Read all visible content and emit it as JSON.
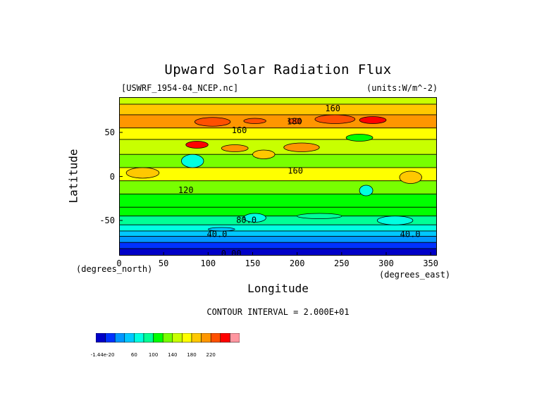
{
  "chart_data": {
    "type": "heatmap",
    "title": "Upward Solar Radiation Flux",
    "file_label": "[USWRF_1954-04_NCEP.nc]",
    "units_label": "(units:W/m^-2)",
    "xlabel": "Longitude",
    "ylabel": "Latitude",
    "xlabel_units": "(degrees_east)",
    "ylabel_units": "(degrees_north)",
    "xlim": [
      0,
      357
    ],
    "ylim": [
      -90,
      90
    ],
    "x_ticks": [
      0,
      50,
      100,
      150,
      200,
      250,
      300,
      350
    ],
    "y_ticks": [
      -50,
      0,
      50
    ],
    "contour_interval_text": "CONTOUR INTERVAL = 2.000E+01",
    "contour_labels": [
      {
        "text": "160",
        "x": 240,
        "y": 77
      },
      {
        "text": "180",
        "x": 197,
        "y": 62
      },
      {
        "text": "160",
        "x": 135,
        "y": 52
      },
      {
        "text": "160",
        "x": 198,
        "y": 6
      },
      {
        "text": "120",
        "x": 75,
        "y": -16
      },
      {
        "text": "80.0",
        "x": 143,
        "y": -50
      },
      {
        "text": "40.0",
        "x": 110,
        "y": -66
      },
      {
        "text": "40.0",
        "x": 327,
        "y": -66
      },
      {
        "text": "0.00",
        "x": 126,
        "y": -88
      }
    ],
    "colorbar": {
      "colors": [
        "#0000c8",
        "#0032ff",
        "#0096ff",
        "#00c8ff",
        "#00ffe1",
        "#00ff96",
        "#00ff00",
        "#78ff00",
        "#c8ff00",
        "#ffff00",
        "#ffc800",
        "#ff9600",
        "#ff5000",
        "#ff0000",
        "#ff96a0"
      ],
      "tick_labels": [
        "-1.44e-20",
        "60",
        "100",
        "140",
        "180",
        "220"
      ]
    },
    "rows": [
      {
        "lat_range": [
          82,
          90
        ],
        "level": 8
      },
      {
        "lat_range": [
          70,
          82
        ],
        "level": 10
      },
      {
        "lat_range": [
          55,
          70
        ],
        "level": 11
      },
      {
        "lat_range": [
          42,
          55
        ],
        "level": 9
      },
      {
        "lat_range": [
          25,
          42
        ],
        "level": 8
      },
      {
        "lat_range": [
          10,
          25
        ],
        "level": 7
      },
      {
        "lat_range": [
          -5,
          10
        ],
        "level": 9
      },
      {
        "lat_range": [
          -20,
          -5
        ],
        "level": 7
      },
      {
        "lat_range": [
          -35,
          -20
        ],
        "level": 6
      },
      {
        "lat_range": [
          -45,
          -35
        ],
        "level": 6
      },
      {
        "lat_range": [
          -55,
          -45
        ],
        "level": 5
      },
      {
        "lat_range": [
          -62,
          -55
        ],
        "level": 4
      },
      {
        "lat_range": [
          -68,
          -62
        ],
        "level": 3
      },
      {
        "lat_range": [
          -75,
          -68
        ],
        "level": 2
      },
      {
        "lat_range": [
          -82,
          -75
        ],
        "level": 1
      },
      {
        "lat_range": [
          -90,
          -82
        ],
        "level": 0
      }
    ],
    "patches": [
      {
        "lon": [
          85,
          125
        ],
        "lat": [
          57,
          67
        ],
        "level": 12
      },
      {
        "lon": [
          140,
          165
        ],
        "lat": [
          60,
          66
        ],
        "level": 12
      },
      {
        "lon": [
          190,
          205
        ],
        "lat": [
          60,
          66
        ],
        "level": 12
      },
      {
        "lon": [
          220,
          265
        ],
        "lat": [
          60,
          70
        ],
        "level": 12
      },
      {
        "lon": [
          270,
          300
        ],
        "lat": [
          60,
          68
        ],
        "level": 13
      },
      {
        "lon": [
          75,
          100
        ],
        "lat": [
          32,
          40
        ],
        "level": 13
      },
      {
        "lon": [
          115,
          145
        ],
        "lat": [
          28,
          36
        ],
        "level": 11
      },
      {
        "lon": [
          185,
          225
        ],
        "lat": [
          28,
          38
        ],
        "level": 11
      },
      {
        "lon": [
          150,
          175
        ],
        "lat": [
          20,
          30
        ],
        "level": 10
      },
      {
        "lon": [
          8,
          45
        ],
        "lat": [
          -2,
          10
        ],
        "level": 10
      },
      {
        "lon": [
          315,
          340
        ],
        "lat": [
          -8,
          6
        ],
        "level": 10
      },
      {
        "lon": [
          70,
          95
        ],
        "lat": [
          10,
          25
        ],
        "level": 4
      },
      {
        "lon": [
          270,
          285
        ],
        "lat": [
          -22,
          -10
        ],
        "level": 4
      },
      {
        "lon": [
          140,
          165
        ],
        "lat": [
          -52,
          -42
        ],
        "level": 4
      },
      {
        "lon": [
          290,
          330
        ],
        "lat": [
          -55,
          -45
        ],
        "level": 4
      },
      {
        "lon": [
          100,
          130
        ],
        "lat": [
          -62,
          -58
        ],
        "level": 3
      },
      {
        "lon": [
          200,
          250
        ],
        "lat": [
          -48,
          -42
        ],
        "level": 5
      },
      {
        "lon": [
          255,
          285
        ],
        "lat": [
          40,
          48
        ],
        "level": 6
      }
    ]
  }
}
